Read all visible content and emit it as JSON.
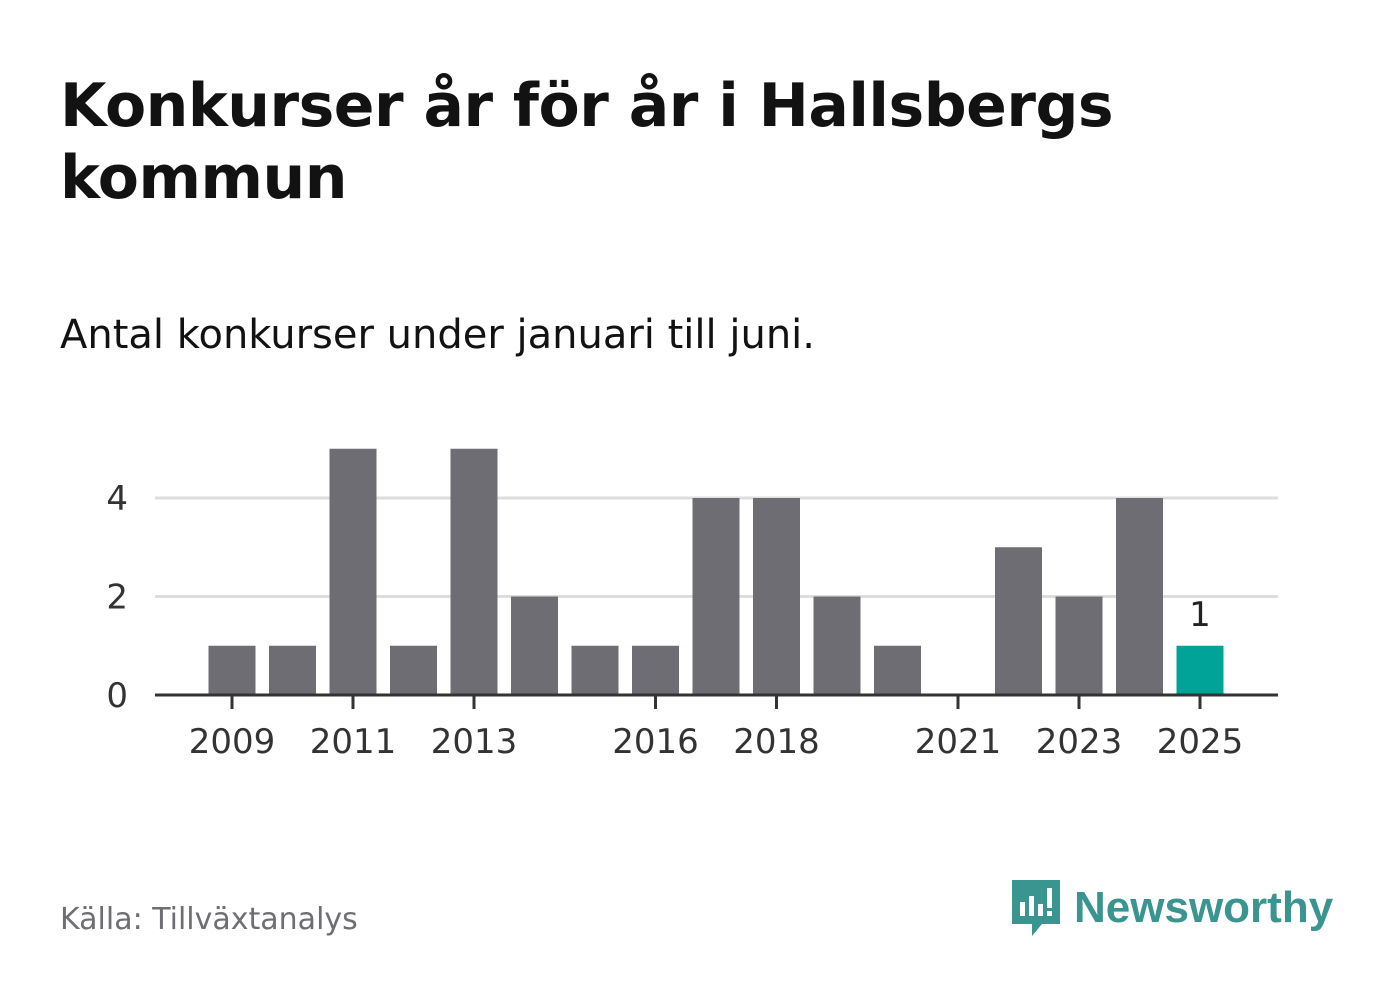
{
  "header": {
    "title": "Konkurser år för år i Hallsbergs kommun",
    "subtitle": "Antal konkurser under januari till juni."
  },
  "footer": {
    "source": "Källa: Tillväxtanalys",
    "brand": "Newsworthy"
  },
  "colors": {
    "bar": "#6e6d73",
    "highlight": "#00a398",
    "brand": "#3a948f",
    "grid": "#dddddd"
  },
  "chart_data": {
    "type": "bar",
    "title": "Konkurser år för år i Hallsbergs kommun",
    "subtitle": "Antal konkurser under januari till juni.",
    "categories": [
      "2009",
      "2010",
      "2011",
      "2012",
      "2013",
      "2014",
      "2015",
      "2016",
      "2017",
      "2018",
      "2019",
      "2020",
      "2021",
      "2022",
      "2023",
      "2024",
      "2025"
    ],
    "values": [
      1,
      1,
      5,
      1,
      5,
      2,
      1,
      1,
      4,
      4,
      2,
      1,
      0,
      3,
      2,
      4,
      1
    ],
    "x_tick_labels": [
      "2009",
      "2011",
      "2013",
      "2016",
      "2018",
      "2021",
      "2023",
      "2025"
    ],
    "y_ticks": [
      0,
      2,
      4
    ],
    "ylim": [
      0,
      5
    ],
    "highlight_category": "2025",
    "data_labels": [
      {
        "category": "2025",
        "value": 1,
        "text": "1"
      }
    ],
    "xlabel": "",
    "ylabel": "",
    "grid": true
  }
}
